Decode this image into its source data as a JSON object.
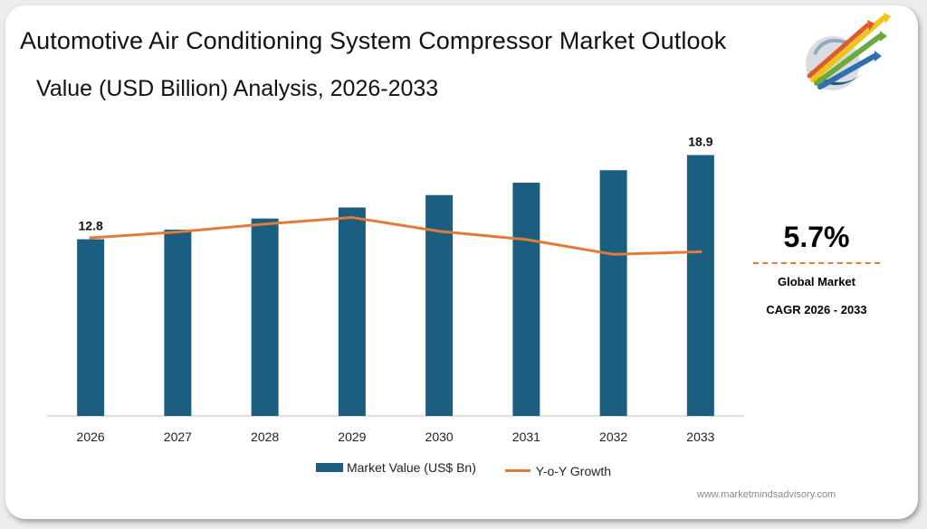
{
  "header": {
    "title": "Automotive Air Conditioning System Compressor Market  Outlook",
    "subtitle": "Value (USD Billion) Analysis, 2026-2033"
  },
  "logo": {
    "icon": "arrows-globe-logo-icon"
  },
  "cagr": {
    "value": "5.7%",
    "line1": "Global Market",
    "line2": "CAGR 2026 - 2033"
  },
  "legend": {
    "bar_label": "Market Value (US$ Bn)",
    "line_label": "Y-o-Y Growth"
  },
  "footer": {
    "url": "www.marketmindsadvisory.com"
  },
  "colors": {
    "bar": "#1b5e80",
    "line": "#e07b39",
    "dash": "#e07b39"
  },
  "chart_data": {
    "type": "bar",
    "categories": [
      "2026",
      "2027",
      "2028",
      "2029",
      "2030",
      "2031",
      "2032",
      "2033"
    ],
    "series": [
      {
        "name": "Market Value (US$ Bn)",
        "type": "bar",
        "values": [
          12.8,
          13.5,
          14.3,
          15.1,
          16.0,
          16.9,
          17.8,
          18.9
        ]
      },
      {
        "name": "Y-o-Y Growth",
        "type": "line",
        "axis": "hidden",
        "values": [
          5.4,
          5.58,
          5.82,
          6.02,
          5.6,
          5.35,
          4.9,
          4.98
        ]
      }
    ],
    "data_labels": [
      {
        "category": "2026",
        "text": "12.8"
      },
      {
        "category": "2033",
        "text": "18.9"
      }
    ],
    "ylim": [
      0,
      20
    ],
    "line_ylim": [
      0,
      8.5
    ],
    "grid": false,
    "legend_position": "bottom"
  }
}
